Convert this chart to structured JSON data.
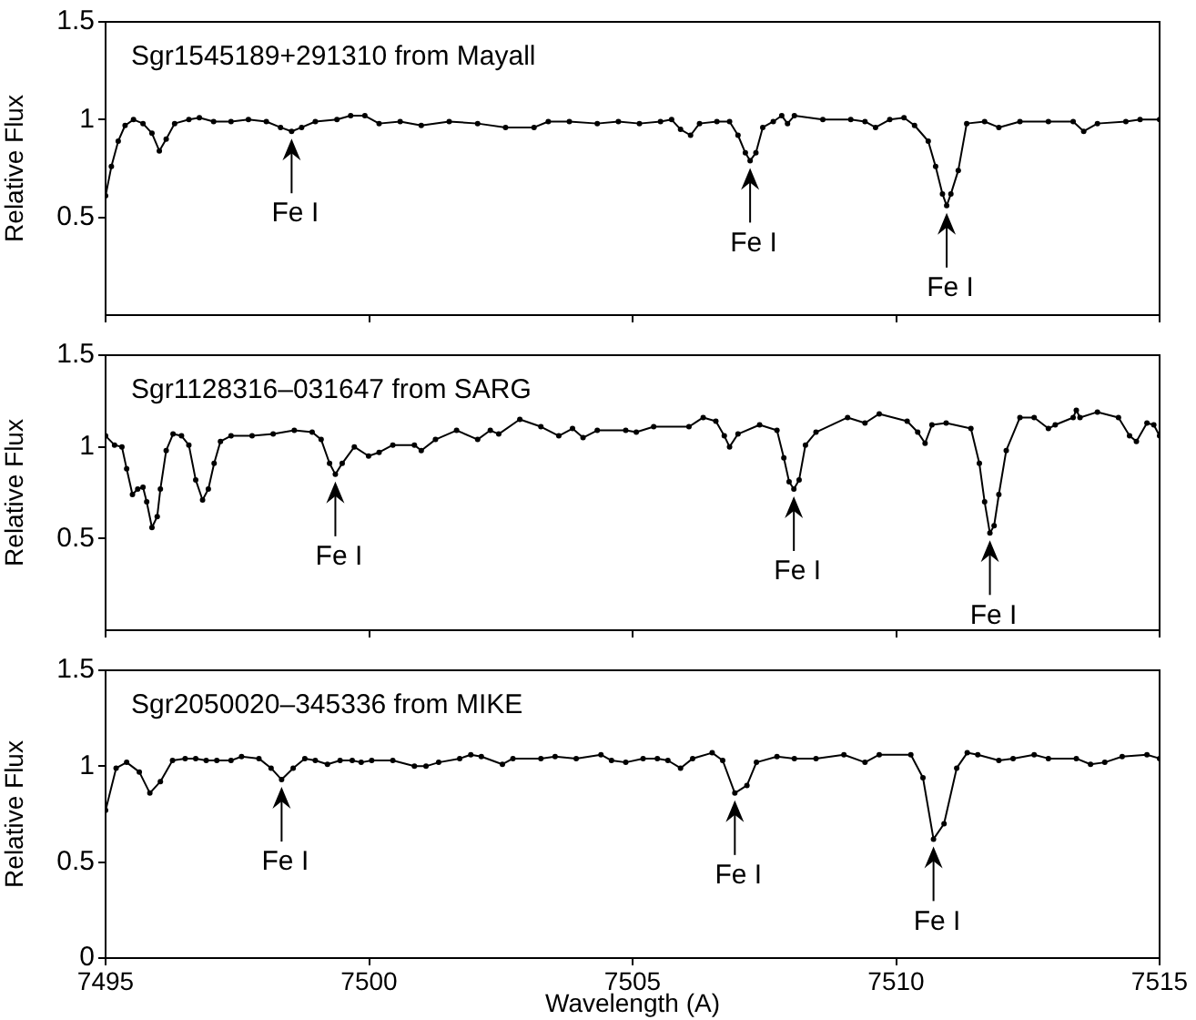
{
  "chart_data": [
    {
      "type": "line",
      "title": "Sgr1545189+291310 from Mayall",
      "ylabel": "Relative Flux",
      "color": "#000000",
      "marker": "circle",
      "line_style": "solid",
      "tick_labels": "y",
      "xlim": [
        7495,
        7515
      ],
      "xticks": [
        7495,
        7500,
        7505,
        7510,
        7515
      ],
      "ylim": [
        0,
        1.5
      ],
      "yticks": [
        0.5,
        1,
        1.5
      ],
      "x": [
        7495.0,
        7495.11,
        7495.24,
        7495.37,
        7495.53,
        7495.71,
        7495.88,
        7496.02,
        7496.15,
        7496.31,
        7496.58,
        7496.78,
        7497.05,
        7497.38,
        7497.71,
        7498.05,
        7498.32,
        7498.53,
        7498.72,
        7498.98,
        7499.39,
        7499.65,
        7499.92,
        7500.19,
        7500.59,
        7500.99,
        7501.52,
        7502.06,
        7502.59,
        7503.13,
        7503.4,
        7503.8,
        7504.33,
        7504.73,
        7505.13,
        7505.53,
        7505.74,
        7505.91,
        7506.1,
        7506.27,
        7506.6,
        7506.84,
        7507.0,
        7507.14,
        7507.23,
        7507.34,
        7507.47,
        7507.67,
        7507.83,
        7507.94,
        7508.07,
        7508.61,
        7509.14,
        7509.41,
        7509.61,
        7509.88,
        7510.15,
        7510.35,
        7510.61,
        7510.75,
        7510.88,
        7510.96,
        7511.04,
        7511.18,
        7511.34,
        7511.68,
        7511.95,
        7512.35,
        7512.89,
        7513.36,
        7513.56,
        7513.82,
        7514.36,
        7514.63,
        7515.0
      ],
      "values": [
        0.61,
        0.76,
        0.89,
        0.97,
        1.0,
        0.98,
        0.93,
        0.84,
        0.9,
        0.98,
        1.0,
        1.01,
        0.99,
        0.99,
        1.0,
        0.99,
        0.96,
        0.94,
        0.96,
        0.99,
        1.0,
        1.02,
        1.02,
        0.98,
        0.99,
        0.97,
        0.99,
        0.98,
        0.96,
        0.96,
        0.99,
        0.99,
        0.98,
        0.99,
        0.98,
        0.99,
        1.0,
        0.95,
        0.92,
        0.98,
        0.99,
        0.99,
        0.92,
        0.83,
        0.79,
        0.83,
        0.96,
        0.99,
        1.02,
        0.98,
        1.02,
        1.0,
        1.0,
        0.99,
        0.96,
        1.0,
        1.01,
        0.97,
        0.89,
        0.76,
        0.62,
        0.56,
        0.62,
        0.74,
        0.98,
        0.99,
        0.96,
        0.99,
        0.99,
        0.99,
        0.94,
        0.98,
        0.99,
        1.0,
        1.0
      ],
      "annotations": [
        {
          "text": "Fe I",
          "x": 7498.53,
          "y": 0.94
        },
        {
          "text": "Fe I",
          "x": 7507.23,
          "y": 0.79
        },
        {
          "text": "Fe I",
          "x": 7510.96,
          "y": 0.56
        }
      ]
    },
    {
      "type": "line",
      "title": "Sgr1128316–031647 from SARG",
      "ylabel": "Relative Flux",
      "color": "#000000",
      "marker": "circle",
      "line_style": "solid",
      "tick_labels": "y",
      "xlim": [
        7495,
        7515
      ],
      "xticks": [
        7495,
        7500,
        7505,
        7510,
        7515
      ],
      "ylim": [
        0,
        1.5
      ],
      "yticks": [
        0.5,
        1,
        1.5
      ],
      "x": [
        7495.0,
        7495.17,
        7495.31,
        7495.4,
        7495.51,
        7495.61,
        7495.71,
        7495.78,
        7495.88,
        7495.98,
        7496.04,
        7496.15,
        7496.28,
        7496.44,
        7496.58,
        7496.71,
        7496.84,
        7496.95,
        7497.06,
        7497.18,
        7497.38,
        7497.78,
        7498.18,
        7498.58,
        7498.92,
        7499.09,
        7499.25,
        7499.36,
        7499.49,
        7499.72,
        7499.99,
        7500.19,
        7500.45,
        7500.86,
        7500.99,
        7501.26,
        7501.66,
        7502.06,
        7502.3,
        7502.46,
        7502.86,
        7503.26,
        7503.6,
        7503.86,
        7504.06,
        7504.33,
        7504.87,
        7505.07,
        7505.4,
        7506.07,
        7506.34,
        7506.58,
        7506.74,
        7506.84,
        7507.0,
        7507.41,
        7507.74,
        7507.87,
        7507.97,
        7508.06,
        7508.16,
        7508.28,
        7508.48,
        7509.08,
        7509.41,
        7509.68,
        7510.21,
        7510.41,
        7510.55,
        7510.68,
        7510.95,
        7511.42,
        7511.58,
        7511.68,
        7511.78,
        7511.86,
        7511.95,
        7512.09,
        7512.35,
        7512.62,
        7512.89,
        7513.02,
        7513.36,
        7513.42,
        7513.49,
        7513.82,
        7514.22,
        7514.43,
        7514.56,
        7514.76,
        7514.89,
        7515.0
      ],
      "values": [
        1.06,
        1.01,
        1.0,
        0.88,
        0.74,
        0.77,
        0.78,
        0.7,
        0.56,
        0.62,
        0.77,
        0.98,
        1.07,
        1.06,
        1.01,
        0.82,
        0.71,
        0.77,
        0.91,
        1.03,
        1.06,
        1.06,
        1.07,
        1.09,
        1.08,
        1.04,
        0.91,
        0.85,
        0.91,
        1.0,
        0.95,
        0.97,
        1.01,
        1.01,
        0.98,
        1.04,
        1.09,
        1.04,
        1.09,
        1.07,
        1.15,
        1.11,
        1.06,
        1.1,
        1.05,
        1.09,
        1.09,
        1.08,
        1.11,
        1.11,
        1.16,
        1.14,
        1.06,
        1.0,
        1.07,
        1.12,
        1.09,
        0.94,
        0.81,
        0.77,
        0.82,
        1.01,
        1.08,
        1.16,
        1.13,
        1.18,
        1.14,
        1.08,
        1.02,
        1.12,
        1.13,
        1.1,
        0.91,
        0.7,
        0.53,
        0.57,
        0.74,
        0.98,
        1.16,
        1.16,
        1.1,
        1.12,
        1.16,
        1.2,
        1.16,
        1.19,
        1.16,
        1.06,
        1.03,
        1.13,
        1.12,
        1.06
      ],
      "annotations": [
        {
          "text": "Fe I",
          "x": 7499.36,
          "y": 0.85
        },
        {
          "text": "Fe I",
          "x": 7508.06,
          "y": 0.77
        },
        {
          "text": "Fe I",
          "x": 7511.78,
          "y": 0.53
        }
      ]
    },
    {
      "type": "line",
      "title": "Sgr2050020–345336 from MIKE",
      "ylabel": "Relative Flux",
      "xlabel": "Wavelength (A)",
      "color": "#000000",
      "marker": "circle",
      "line_style": "solid",
      "xlim": [
        7495,
        7515
      ],
      "xticks": [
        7495,
        7500,
        7505,
        7510,
        7515
      ],
      "ylim": [
        0,
        1.5
      ],
      "yticks": [
        0,
        0.5,
        1,
        1.5
      ],
      "x": [
        7495.0,
        7495.2,
        7495.4,
        7495.64,
        7495.84,
        7496.04,
        7496.27,
        7496.51,
        7496.71,
        7496.91,
        7497.11,
        7497.38,
        7497.58,
        7497.91,
        7498.14,
        7498.34,
        7498.56,
        7498.78,
        7498.98,
        7499.21,
        7499.45,
        7499.68,
        7499.85,
        7500.05,
        7500.45,
        7500.86,
        7501.08,
        7501.32,
        7501.72,
        7501.93,
        7502.13,
        7502.53,
        7502.73,
        7503.26,
        7503.53,
        7503.93,
        7504.4,
        7504.6,
        7504.87,
        7505.2,
        7505.47,
        7505.67,
        7505.91,
        7506.14,
        7506.51,
        7506.71,
        7506.94,
        7507.17,
        7507.35,
        7507.74,
        7508.07,
        7508.48,
        7509.01,
        7509.41,
        7509.68,
        7510.28,
        7510.51,
        7510.71,
        7510.91,
        7511.15,
        7511.35,
        7511.55,
        7511.95,
        7512.22,
        7512.62,
        7512.89,
        7513.42,
        7513.69,
        7513.96,
        7514.29,
        7514.76,
        7515.0
      ],
      "values": [
        0.77,
        0.99,
        1.02,
        0.97,
        0.86,
        0.92,
        1.03,
        1.04,
        1.04,
        1.03,
        1.03,
        1.03,
        1.05,
        1.04,
        0.99,
        0.93,
        0.99,
        1.04,
        1.03,
        1.01,
        1.03,
        1.03,
        1.02,
        1.03,
        1.03,
        1.0,
        1.0,
        1.02,
        1.04,
        1.06,
        1.05,
        1.01,
        1.04,
        1.04,
        1.05,
        1.04,
        1.06,
        1.03,
        1.02,
        1.04,
        1.04,
        1.03,
        0.99,
        1.04,
        1.07,
        1.03,
        0.86,
        0.9,
        1.02,
        1.05,
        1.04,
        1.04,
        1.06,
        1.02,
        1.06,
        1.06,
        0.94,
        0.62,
        0.7,
        0.99,
        1.07,
        1.06,
        1.03,
        1.04,
        1.06,
        1.04,
        1.04,
        1.01,
        1.02,
        1.05,
        1.06,
        1.04
      ],
      "annotations": [
        {
          "text": "Fe I",
          "x": 7498.34,
          "y": 0.93
        },
        {
          "text": "Fe I",
          "x": 7506.94,
          "y": 0.86
        },
        {
          "text": "Fe I",
          "x": 7510.71,
          "y": 0.62
        }
      ]
    }
  ]
}
